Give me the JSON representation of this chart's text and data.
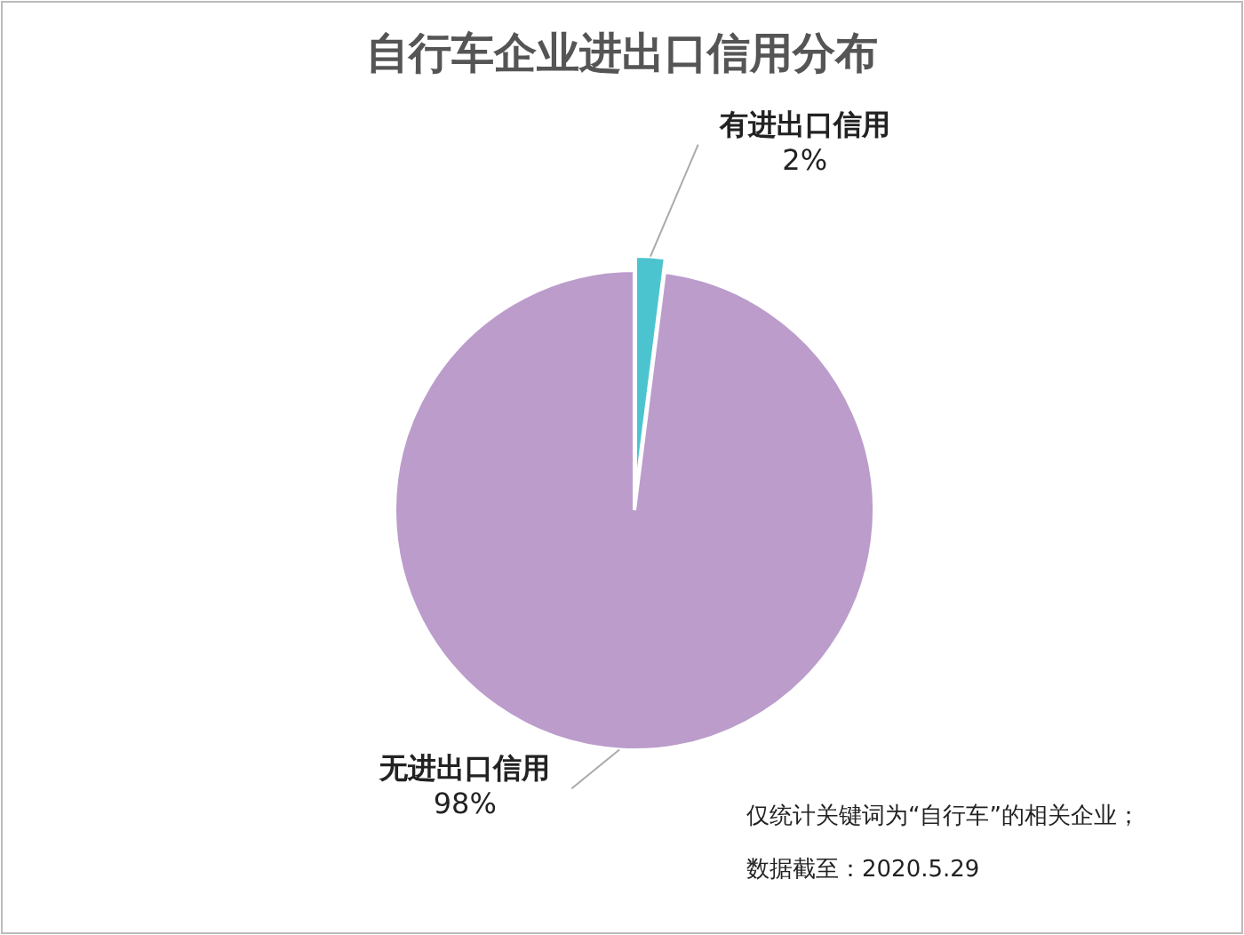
{
  "chart_data": {
    "type": "pie",
    "title": "自行车企业进出口信用分布",
    "categories": [
      "有进出口信用",
      "无进出口信用"
    ],
    "values": [
      2,
      98
    ],
    "colors": [
      "#4bc4cf",
      "#bb9ccb"
    ],
    "value_labels": [
      "2%",
      "98%"
    ],
    "annotations": [
      "仅统计关键词为“自行车”的相关企业；",
      "数据截至：2020.5.29"
    ]
  }
}
